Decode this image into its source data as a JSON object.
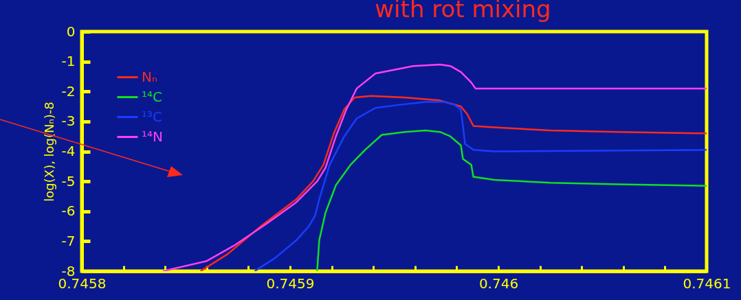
{
  "chart_data": {
    "type": "line",
    "title": "with rot mixing",
    "ylabel": "log(X), log(Nₙ)-8",
    "xlim": [
      0.7458,
      0.7461
    ],
    "xticks": [
      0.7458,
      {
        "value": 0.74582,
        "label": null
      },
      {
        "value": 0.74584,
        "label": null
      },
      {
        "value": 0.74586,
        "label": null
      },
      {
        "value": 0.74588,
        "label": null
      },
      0.7459,
      {
        "value": 0.74592,
        "label": null
      },
      {
        "value": 0.74594,
        "label": null
      },
      {
        "value": 0.74596,
        "label": null
      },
      {
        "value": 0.74598,
        "label": null
      },
      0.746,
      {
        "value": 0.74602,
        "label": null
      },
      {
        "value": 0.74604,
        "label": null
      },
      {
        "value": 0.74606,
        "label": null
      },
      {
        "value": 0.74608,
        "label": null
      },
      0.7461
    ],
    "ylim": [
      -8,
      0
    ],
    "yticks": [
      -8,
      -7,
      -6,
      -5,
      -4,
      -3,
      -2,
      -1,
      0
    ],
    "grid": false,
    "legend": "top left",
    "line_style": "solid",
    "marker": "none",
    "series": [
      {
        "name": "Nₙ",
        "color": "#ff2a1a",
        "x": [
          0.745857,
          0.74587,
          0.745886,
          0.745903,
          0.745911,
          0.745916,
          0.745921,
          0.745926,
          0.745931,
          0.745939,
          0.745955,
          0.745972,
          0.745982,
          0.745985,
          0.745988,
          0.745998,
          0.746025,
          0.746058,
          0.7461
        ],
        "values": [
          -8,
          -7.43,
          -6.5,
          -5.6,
          -5.0,
          -4.45,
          -3.4,
          -2.6,
          -2.2,
          -2.15,
          -2.2,
          -2.3,
          -2.5,
          -2.75,
          -3.15,
          -3.2,
          -3.3,
          -3.35,
          -3.4
        ]
      },
      {
        "name": "¹⁴C",
        "color": "#10e020",
        "x": [
          0.745913,
          0.745914,
          0.745917,
          0.745922,
          0.745929,
          0.745936,
          0.745944,
          0.745955,
          0.745965,
          0.745972,
          0.745977,
          0.745982,
          0.745983,
          0.745987,
          0.745988,
          0.745998,
          0.746025,
          0.746058,
          0.7461
        ],
        "values": [
          -8,
          -6.97,
          -6.05,
          -5.13,
          -4.45,
          -3.95,
          -3.45,
          -3.35,
          -3.3,
          -3.35,
          -3.5,
          -3.8,
          -4.25,
          -4.45,
          -4.85,
          -4.95,
          -5.05,
          -5.1,
          -5.15
        ]
      },
      {
        "name": "¹³C",
        "color": "#1a3cff",
        "x": [
          0.745883,
          0.745893,
          0.745903,
          0.745909,
          0.745912,
          0.745914,
          0.745919,
          0.745926,
          0.745932,
          0.745941,
          0.745952,
          0.745965,
          0.745974,
          0.745979,
          0.745982,
          0.745983,
          0.745984,
          0.745988,
          0.745998,
          0.7461
        ],
        "values": [
          -8,
          -7.55,
          -6.97,
          -6.5,
          -6.15,
          -5.6,
          -4.45,
          -3.5,
          -2.9,
          -2.55,
          -2.45,
          -2.35,
          -2.35,
          -2.45,
          -2.6,
          -3.15,
          -3.75,
          -3.95,
          -4.0,
          -3.95
        ]
      },
      {
        "name": "¹⁴N",
        "color": "#ff40f0",
        "x": [
          0.745839,
          0.74586,
          0.745873,
          0.745889,
          0.745903,
          0.745913,
          0.745917,
          0.745922,
          0.745927,
          0.745932,
          0.745941,
          0.745952,
          0.745959,
          0.745972,
          0.745977,
          0.745982,
          0.745987,
          0.745989,
          0.745998,
          0.7461
        ],
        "values": [
          -8,
          -7.66,
          -7.15,
          -6.4,
          -5.7,
          -5.0,
          -4.55,
          -3.5,
          -2.6,
          -1.9,
          -1.4,
          -1.25,
          -1.15,
          -1.1,
          -1.15,
          -1.35,
          -1.7,
          -1.9,
          -1.9,
          -1.9
        ]
      }
    ]
  }
}
